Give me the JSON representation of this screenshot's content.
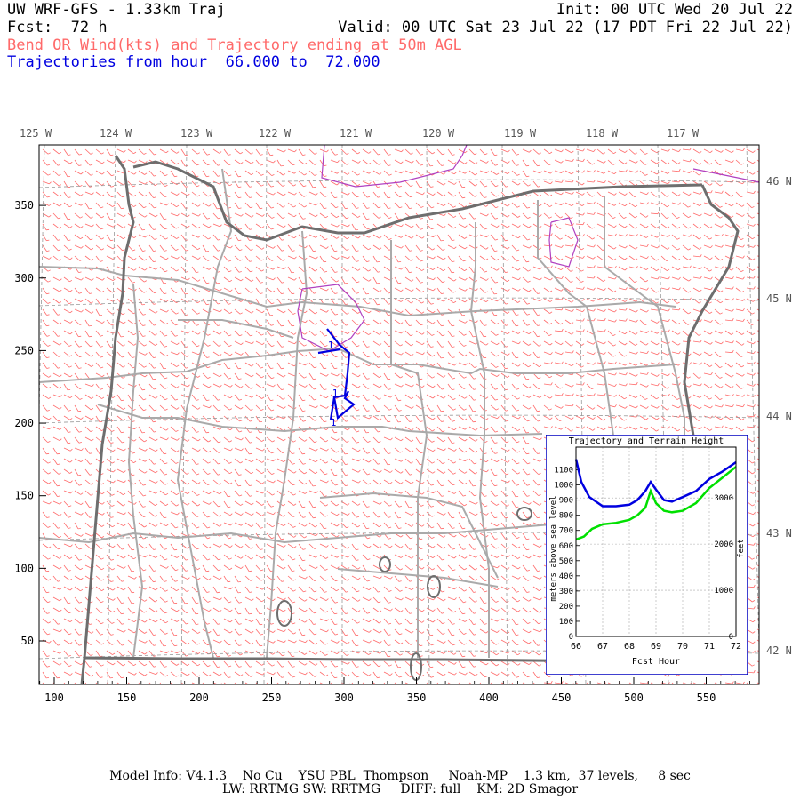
{
  "header": {
    "title": "UW WRF-GFS - 1.33km Traj",
    "init": "Init: 00 UTC Wed 20 Jul 22",
    "fcst": "Fcst:  72 h",
    "valid": "Valid: 00 UTC Sat 23 Jul 22 (17 PDT Fri 22 Jul 22)",
    "field": "Bend OR Wind(kts) and Trajectory ending at 50m AGL",
    "traj_hours": "Trajectories from hour  66.000 to  72.000"
  },
  "map": {
    "lon_labels": [
      "125 W",
      "124 W",
      "123 W",
      "122 W",
      "121 W",
      "120 W",
      "119 W",
      "118 W",
      "117 W"
    ],
    "lat_labels": [
      "46 N",
      "45 N",
      "44 N",
      "43 N",
      "42 N"
    ],
    "x_ticks": [
      "100",
      "150",
      "200",
      "250",
      "300",
      "350",
      "400",
      "450",
      "500",
      "550"
    ],
    "y_ticks": [
      "50",
      "100",
      "150",
      "200",
      "250",
      "300",
      "350"
    ],
    "trajectory_marks": [
      "1",
      "1",
      "1"
    ],
    "colors": {
      "wind_barbs": "#ff6a6a",
      "trajectory": "#0000e0",
      "coastline": "#6e6e6e",
      "counties": "#aaaaaa",
      "water": "#b040c0",
      "gridlines": "#999999"
    }
  },
  "inset": {
    "title": "Trajectory and Terrain Height",
    "ylabel_left": "meters above sea level",
    "ylabel_right": "feet",
    "xlabel": "Fcst Hour",
    "m_ticks": [
      "0",
      "100",
      "200",
      "300",
      "400",
      "500",
      "600",
      "700",
      "800",
      "900",
      "1000",
      "1100"
    ],
    "ft_ticks": [
      "0",
      "1000",
      "2000",
      "3000"
    ],
    "x_ticks": [
      "66",
      "67",
      "68",
      "69",
      "70",
      "71",
      "72"
    ],
    "series": [
      {
        "color": "#0000e0",
        "hours": [
          66.0,
          66.2,
          66.5,
          67.0,
          67.5,
          68.0,
          68.3,
          68.6,
          68.8,
          69.0,
          69.3,
          69.6,
          70.0,
          70.5,
          71.0,
          71.5,
          72.0
        ],
        "values": [
          1170,
          1020,
          920,
          860,
          860,
          870,
          900,
          960,
          1020,
          970,
          900,
          890,
          920,
          960,
          1040,
          1090,
          1150
        ]
      },
      {
        "color": "#00e000",
        "hours": [
          66.0,
          66.3,
          66.6,
          67.0,
          67.5,
          68.0,
          68.3,
          68.6,
          68.8,
          69.0,
          69.3,
          69.6,
          70.0,
          70.5,
          71.0,
          71.5,
          72.0
        ],
        "values": [
          640,
          660,
          710,
          740,
          750,
          770,
          800,
          850,
          960,
          880,
          830,
          820,
          830,
          880,
          980,
          1050,
          1120
        ]
      }
    ]
  },
  "footer": {
    "line1": "Model Info: V4.1.3    No Cu    YSU PBL  Thompson     Noah-MP    1.3 km,  37 levels,     8 sec",
    "line2": "LW: RRTMG SW: RRTMG     DIFF: full    KM: 2D Smagor"
  }
}
